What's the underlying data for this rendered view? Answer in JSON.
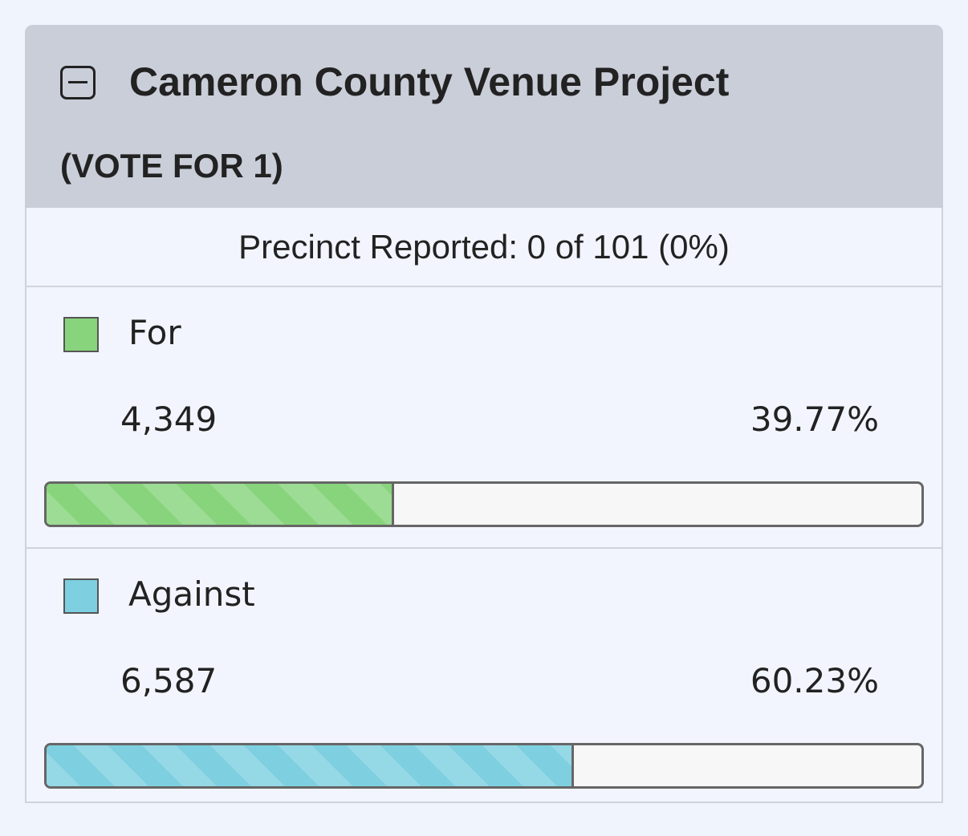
{
  "header": {
    "title": "Cameron County Venue Project",
    "subtitle": "(VOTE FOR 1)"
  },
  "precincts": "Precinct Reported: 0 of 101 (0%)",
  "choices": [
    {
      "name": "For",
      "color": "#88d47c",
      "votes": "4,349",
      "percent": {
        "value": 39.77,
        "label": "39.77%"
      }
    },
    {
      "name": "Against",
      "color": "#7ecfe0",
      "votes": "6,587",
      "percent": {
        "value": 60.23,
        "label": "60.23%"
      }
    }
  ]
}
